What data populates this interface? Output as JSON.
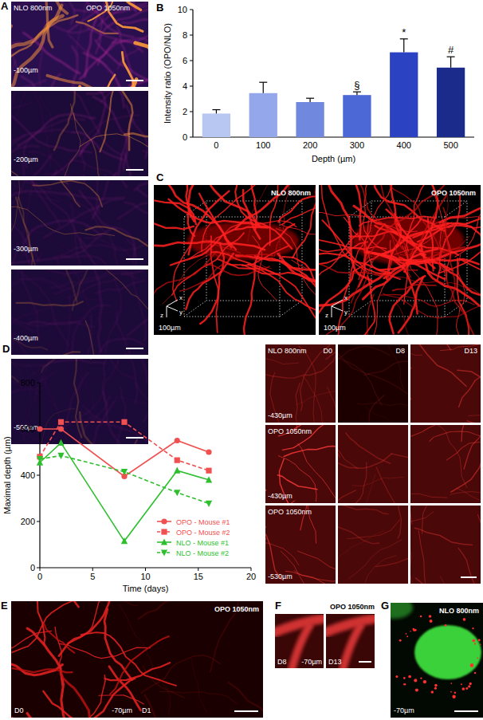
{
  "chart_data": [
    {
      "type": "bar",
      "y_label": "Intensity ratio (OPO/NLO)",
      "x_label": "Depth (µm)",
      "categories": [
        "0",
        "100",
        "200",
        "300",
        "400",
        "500"
      ],
      "values": [
        1.85,
        3.45,
        2.75,
        3.3,
        6.65,
        5.45
      ],
      "errors": [
        0.3,
        0.85,
        0.3,
        0.25,
        1.05,
        0.85
      ],
      "colors": [
        "#b8c6f2",
        "#93a7ea",
        "#7088de",
        "#4c68d6",
        "#2b43c2",
        "#1b2b8c"
      ],
      "ylim": [
        0,
        10
      ],
      "yticks": [
        0,
        2,
        4,
        6,
        8,
        10
      ],
      "annotations": [
        {
          "x": "300",
          "text": "§"
        },
        {
          "x": "400",
          "text": "*"
        },
        {
          "x": "500",
          "text": "#"
        }
      ]
    },
    {
      "type": "line",
      "x_label": "Time (days)",
      "y_label": "Maximal depth (µm)",
      "x": [
        0,
        2,
        8,
        13,
        16
      ],
      "xlim": [
        0,
        20
      ],
      "xticks": [
        0,
        5,
        10,
        15,
        20
      ],
      "ylim": [
        0,
        800
      ],
      "yticks": [
        0,
        200,
        400,
        600,
        800
      ],
      "legend": "lower right",
      "series": [
        {
          "name": "OPO - Mouse #1",
          "color": "#f05050",
          "marker": "circle",
          "line_style": "solid",
          "values": [
            600,
            600,
            395,
            550,
            500
          ]
        },
        {
          "name": "OPO - Mouse #2",
          "color": "#f05050",
          "marker": "square",
          "line_style": "dashed",
          "values": [
            480,
            630,
            630,
            465,
            420
          ]
        },
        {
          "name": "NLO - Mouse #1",
          "color": "#2ebf2e",
          "marker": "triangle-up",
          "line_style": "solid",
          "values": [
            455,
            540,
            115,
            420,
            380
          ]
        },
        {
          "name": "NLO - Mouse #2",
          "color": "#2ebf2e",
          "marker": "triangle-down",
          "line_style": "dashed",
          "values": [
            470,
            485,
            415,
            325,
            278
          ]
        }
      ]
    }
  ],
  "panels": {
    "A": {
      "letter": "A",
      "left_label": "NLO 800nm",
      "right_label": "OPO 1050nm",
      "depths": [
        "-100µm",
        "-200µm",
        "-300µm",
        "-400µm",
        "-500µm"
      ]
    },
    "B": {
      "letter": "B"
    },
    "C": {
      "letter": "C",
      "labels": [
        "NLO 800nm",
        "OPO 1050nm"
      ],
      "scale": "100µm",
      "axes": [
        "x",
        "y",
        "z"
      ]
    },
    "D": {
      "letter": "D",
      "columns": [
        "D0",
        "D8",
        "D13"
      ],
      "rows": [
        {
          "label": "NLO 800nm",
          "depth": "-430µm"
        },
        {
          "label": "OPO 1050nm",
          "depth": "-430µm"
        },
        {
          "label": "OPO 1050nm",
          "depth": "-530µm"
        }
      ]
    },
    "E": {
      "letter": "E",
      "label": "OPO 1050nm",
      "days": [
        "D0",
        "D1"
      ],
      "depth": "-70µm"
    },
    "F": {
      "letter": "F",
      "label": "OPO 1050nm",
      "days": [
        "D8",
        "D13"
      ],
      "depth": "-70µm"
    },
    "G": {
      "letter": "G",
      "label": "NLO 800nm",
      "depth": "-70µm"
    }
  }
}
